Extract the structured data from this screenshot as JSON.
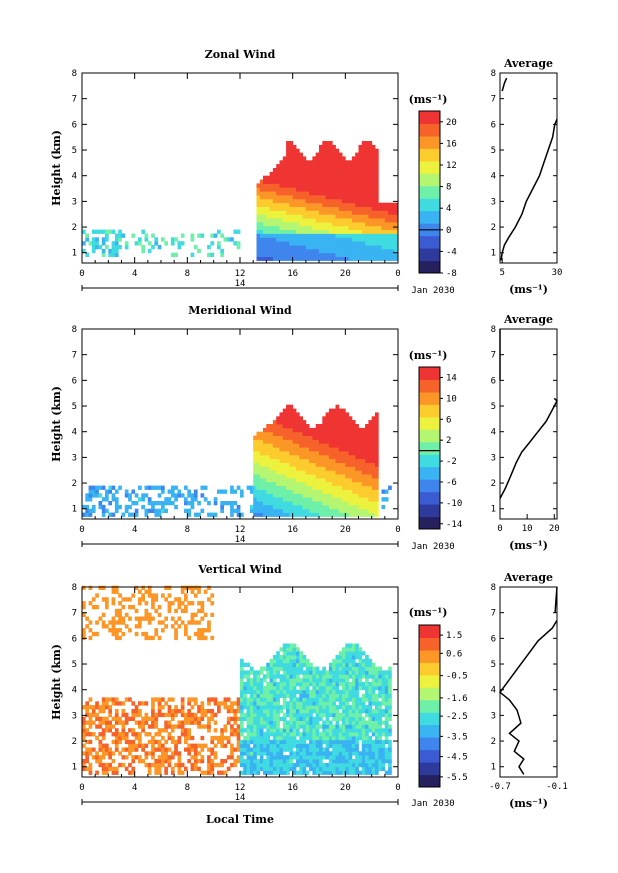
{
  "chart_data": [
    {
      "type": "heatmap",
      "title": "Zonal Wind",
      "ylabel": "Height (km)",
      "unit": "(ms⁻¹)",
      "date_label": "Jan 2030",
      "day_label": "14",
      "xlim": [
        0,
        24
      ],
      "ylim": [
        0.6,
        8
      ],
      "x_ticks": [
        "0",
        "4",
        "8",
        "12",
        "16",
        "20",
        "0"
      ],
      "y_ticks": [
        "1",
        "2",
        "3",
        "4",
        "5",
        "6",
        "7",
        "8"
      ],
      "colorbar": {
        "min": -8,
        "max": 22,
        "zero_line": 0,
        "ticks": [
          "20",
          "16",
          "12",
          "8",
          "4",
          "0",
          "-4",
          "-8"
        ],
        "tick_values": [
          20,
          16,
          12,
          8,
          4,
          0,
          -4,
          -8
        ]
      },
      "field": "zonal",
      "average": {
        "title": "Average",
        "xlim": [
          4,
          30
        ],
        "x_ticks": [
          "5",
          "30"
        ],
        "x_tick_values": [
          5,
          30
        ],
        "unit": "(ms⁻¹)",
        "profile": [
          [
            4.5,
            0.7
          ],
          [
            5,
            1.0
          ],
          [
            6,
            1.3
          ],
          [
            8,
            1.6
          ],
          [
            11,
            2.0
          ],
          [
            14,
            2.5
          ],
          [
            16,
            3.0
          ],
          [
            19,
            3.5
          ],
          [
            22,
            4.0
          ],
          [
            24,
            4.5
          ],
          [
            26,
            5.0
          ],
          [
            28,
            5.5
          ],
          [
            29,
            6.0
          ],
          [
            30,
            6.2
          ]
        ],
        "top_segment": [
          [
            5,
            7.3
          ],
          [
            6,
            7.6
          ],
          [
            7,
            7.8
          ]
        ]
      }
    },
    {
      "type": "heatmap",
      "title": "Meridional Wind",
      "ylabel": "Height (km)",
      "unit": "(ms⁻¹)",
      "date_label": "Jan 2030",
      "day_label": "14",
      "xlim": [
        0,
        24
      ],
      "ylim": [
        0.6,
        8
      ],
      "x_ticks": [
        "0",
        "4",
        "8",
        "12",
        "16",
        "20",
        "0"
      ],
      "y_ticks": [
        "1",
        "2",
        "3",
        "4",
        "5",
        "6",
        "7",
        "8"
      ],
      "colorbar": {
        "min": -15,
        "max": 16,
        "zero_line": 0,
        "ticks": [
          "14",
          "10",
          "6",
          "2",
          "-2",
          "-6",
          "-10",
          "-14"
        ],
        "tick_values": [
          14,
          10,
          6,
          2,
          -2,
          -6,
          -10,
          -14
        ]
      },
      "field": "meridional",
      "average": {
        "title": "Average",
        "xlim": [
          0,
          21
        ],
        "x_ticks": [
          "0",
          "10",
          "20"
        ],
        "x_tick_values": [
          0,
          10,
          20
        ],
        "unit": "(ms⁻¹)",
        "profile": [
          [
            0,
            1.4
          ],
          [
            2,
            1.8
          ],
          [
            4,
            2.3
          ],
          [
            6,
            2.8
          ],
          [
            8,
            3.2
          ],
          [
            11,
            3.6
          ],
          [
            14,
            4.0
          ],
          [
            17,
            4.4
          ],
          [
            19,
            4.8
          ],
          [
            20,
            5.0
          ],
          [
            21,
            5.2
          ],
          [
            20,
            5.3
          ]
        ],
        "top_segment": [
          [
            0,
            6.0
          ],
          [
            0,
            7.5
          ],
          [
            0,
            8
          ]
        ]
      }
    },
    {
      "type": "heatmap",
      "title": "Vertical Wind",
      "ylabel": "Height (km)",
      "xlabel": "Local Time",
      "unit": "(ms⁻¹)",
      "date_label": "Jan 2030",
      "day_label": "14",
      "xlim": [
        0,
        24
      ],
      "ylim": [
        0.6,
        8
      ],
      "x_ticks": [
        "0",
        "4",
        "8",
        "12",
        "16",
        "20",
        "0"
      ],
      "y_ticks": [
        "1",
        "2",
        "3",
        "4",
        "5",
        "6",
        "7",
        "8"
      ],
      "colorbar": {
        "min": -6,
        "max": 2,
        "ticks": [
          "1.5",
          "0.6",
          "-0.5",
          "-1.6",
          "-2.5",
          "-3.5",
          "-4.5",
          "-5.5"
        ],
        "tick_values": [
          1.5,
          0.6,
          -0.5,
          -1.6,
          -2.5,
          -3.5,
          -4.5,
          -5.5
        ]
      },
      "field": "vertical",
      "average": {
        "title": "Average",
        "xlim": [
          -0.7,
          -0.1
        ],
        "x_ticks": [
          "-0.7",
          "-0.1"
        ],
        "x_tick_values": [
          -0.7,
          -0.1
        ],
        "unit": "(ms⁻¹)",
        "profile": [
          [
            -0.45,
            0.7
          ],
          [
            -0.5,
            1.0
          ],
          [
            -0.45,
            1.3
          ],
          [
            -0.55,
            1.6
          ],
          [
            -0.5,
            2.0
          ],
          [
            -0.6,
            2.3
          ],
          [
            -0.48,
            2.7
          ],
          [
            -0.52,
            3.2
          ],
          [
            -0.6,
            3.6
          ],
          [
            -0.7,
            3.9
          ],
          [
            -0.6,
            4.4
          ],
          [
            -0.5,
            4.9
          ],
          [
            -0.4,
            5.4
          ],
          [
            -0.3,
            5.9
          ],
          [
            -0.15,
            6.4
          ],
          [
            -0.1,
            6.7
          ]
        ],
        "top_segment": [
          [
            -0.12,
            7.0
          ],
          [
            -0.11,
            7.5
          ],
          [
            -0.1,
            8
          ]
        ]
      }
    }
  ]
}
